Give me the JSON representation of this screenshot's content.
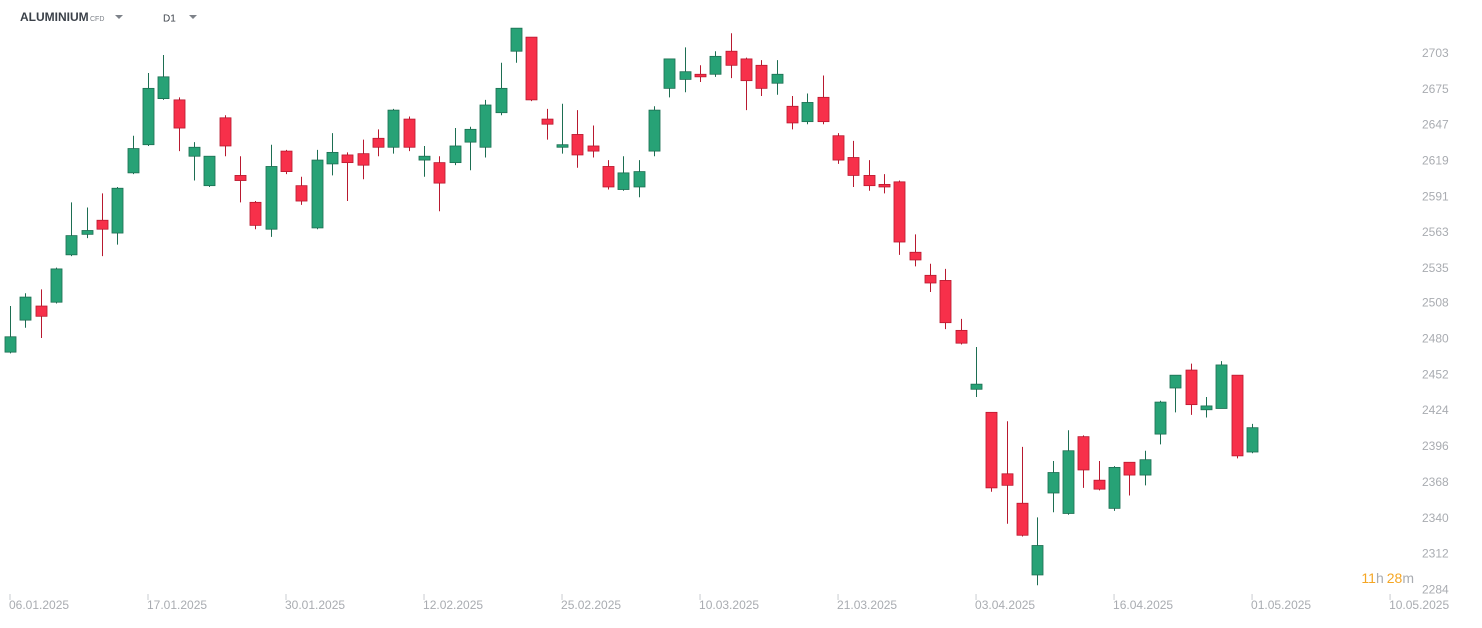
{
  "chart_data": {
    "type": "candlestick",
    "title": "ALUMINIUM",
    "subtitle": "CFD",
    "timeframe": "D1",
    "countdown": [
      "11",
      "h",
      "28",
      "m"
    ],
    "up_color": "#27a276",
    "down_color": "#f7304a",
    "open": [
      2470,
      2495,
      2506,
      2509,
      2546,
      2562,
      2573,
      2563,
      2610,
      2632,
      2668,
      2667,
      2623,
      2600,
      2653,
      2608,
      2587,
      2566,
      2627,
      2600,
      2567,
      2617,
      2624,
      2625,
      2637,
      2630,
      2652,
      2620,
      2618,
      2618,
      2634,
      2630,
      2657,
      2705,
      2716,
      2652,
      2630,
      2640,
      2631,
      2615,
      2597,
      2599,
      2627,
      2676,
      2683,
      2687,
      2687,
      2705,
      2699,
      2694,
      2680,
      2662,
      2650,
      2669,
      2639,
      2622,
      2608,
      2601,
      2603,
      2548,
      2530,
      2526,
      2487,
      2441,
      2423,
      2375,
      2352,
      2296,
      2360,
      2344,
      2404,
      2370,
      2348,
      2384,
      2374,
      2406,
      2442,
      2456,
      2425,
      2426,
      2452,
      2392
    ],
    "high": [
      2506,
      2516,
      2519,
      2536,
      2587,
      2583,
      2594,
      2599,
      2639,
      2688,
      2702,
      2669,
      2634,
      2623,
      2655,
      2623,
      2588,
      2632,
      2628,
      2607,
      2628,
      2641,
      2626,
      2636,
      2644,
      2660,
      2654,
      2631,
      2623,
      2645,
      2646,
      2667,
      2696,
      2723,
      2716,
      2660,
      2664,
      2659,
      2647,
      2620,
      2623,
      2620,
      2662,
      2699,
      2708,
      2694,
      2705,
      2719,
      2700,
      2698,
      2698,
      2670,
      2672,
      2686,
      2641,
      2635,
      2620,
      2609,
      2604,
      2562,
      2539,
      2535,
      2496,
      2474,
      2423,
      2416,
      2396,
      2341,
      2385,
      2409,
      2405,
      2385,
      2381,
      2384,
      2393,
      2432,
      2452,
      2461,
      2435,
      2463,
      2452,
      2414
    ],
    "low": [
      2469,
      2489,
      2481,
      2508,
      2545,
      2559,
      2545,
      2554,
      2609,
      2631,
      2667,
      2627,
      2604,
      2599,
      2623,
      2587,
      2566,
      2560,
      2609,
      2585,
      2566,
      2608,
      2588,
      2605,
      2623,
      2625,
      2627,
      2607,
      2580,
      2616,
      2612,
      2622,
      2655,
      2696,
      2666,
      2636,
      2625,
      2614,
      2622,
      2597,
      2596,
      2591,
      2623,
      2669,
      2673,
      2681,
      2685,
      2684,
      2659,
      2670,
      2671,
      2644,
      2648,
      2648,
      2617,
      2599,
      2596,
      2594,
      2546,
      2537,
      2517,
      2488,
      2476,
      2435,
      2361,
      2336,
      2326,
      2288,
      2345,
      2343,
      2364,
      2362,
      2346,
      2358,
      2366,
      2398,
      2423,
      2421,
      2419,
      2426,
      2387,
      2391
    ],
    "close": [
      2482,
      2513,
      2498,
      2535,
      2561,
      2565,
      2566,
      2598,
      2629,
      2676,
      2685,
      2645,
      2630,
      2623,
      2631,
      2604,
      2569,
      2615,
      2611,
      2588,
      2620,
      2626,
      2618,
      2616,
      2630,
      2659,
      2630,
      2623,
      2602,
      2631,
      2644,
      2663,
      2676,
      2723,
      2667,
      2648,
      2632,
      2624,
      2627,
      2599,
      2610,
      2611,
      2659,
      2699,
      2689,
      2685,
      2701,
      2694,
      2682,
      2676,
      2687,
      2649,
      2665,
      2650,
      2620,
      2608,
      2600,
      2599,
      2556,
      2542,
      2524,
      2493,
      2477,
      2445,
      2364,
      2366,
      2327,
      2319,
      2376,
      2393,
      2378,
      2363,
      2380,
      2374,
      2386,
      2431,
      2452,
      2429,
      2428,
      2460,
      2389,
      2411
    ],
    "xlim": [
      -0.652,
      91.3
    ],
    "xticks": [
      {
        "value": 0,
        "label": "06.01.2025"
      },
      {
        "value": 9,
        "label": "17.01.2025"
      },
      {
        "value": 18,
        "label": "30.01.2025"
      },
      {
        "value": 27,
        "label": "12.02.2025"
      },
      {
        "value": 36,
        "label": "25.02.2025"
      },
      {
        "value": 45,
        "label": "10.03.2025"
      },
      {
        "value": 54,
        "label": "21.03.2025"
      },
      {
        "value": 63,
        "label": "03.04.2025"
      },
      {
        "value": 72,
        "label": "16.04.2025"
      },
      {
        "value": 81,
        "label": "01.05.2025"
      },
      {
        "value": 90,
        "label": "10.05.2025"
      }
    ],
    "ylim": [
      2278,
      2745
    ],
    "yticks": [
      2284,
      2312,
      2340,
      2368,
      2396,
      2424,
      2452,
      2480,
      2508,
      2535,
      2563,
      2591,
      2619,
      2647,
      2675,
      2703
    ]
  }
}
